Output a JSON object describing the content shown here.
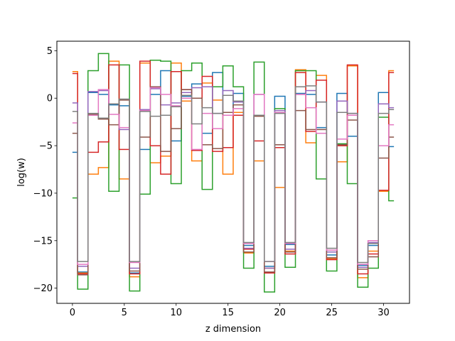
{
  "chart_data": {
    "type": "line",
    "drawstyle": "steps-mid",
    "xlabel": "z dimension",
    "ylabel": "log(w)",
    "xlim": [
      -1.5,
      32.5
    ],
    "ylim": [
      -21.6,
      6.0
    ],
    "xticks": [
      0,
      5,
      10,
      15,
      20,
      25,
      30
    ],
    "yticks": [
      5,
      0,
      -5,
      -10,
      -15,
      -20
    ],
    "ytick_labels": [
      "5",
      "0",
      "−5",
      "−10",
      "−15",
      "−20"
    ],
    "grid": false,
    "legend": "none",
    "x": [
      0,
      1,
      2,
      3,
      4,
      5,
      6,
      7,
      8,
      9,
      10,
      11,
      12,
      13,
      14,
      15,
      16,
      17,
      18,
      19,
      20,
      21,
      22,
      23,
      24,
      25,
      26,
      27,
      28,
      29,
      30,
      31
    ],
    "series": [
      {
        "color": "#1f77b4",
        "values": [
          -5.7,
          -18.3,
          0.6,
          0.4,
          -0.7,
          -0.8,
          -18.4,
          -5.4,
          0.4,
          2.9,
          -4.5,
          0.2,
          1.5,
          -3.7,
          2.7,
          -1.8,
          0.5,
          -15.5,
          -1.8,
          -17.7,
          0.2,
          -15.4,
          0.5,
          0.4,
          -3.1,
          -16.5,
          0.5,
          -4.0,
          -17.6,
          -15.5,
          0.6,
          -5.1
        ]
      },
      {
        "color": "#ff7f0e",
        "values": [
          2.8,
          -18.4,
          -8.0,
          -7.3,
          3.9,
          -8.5,
          -18.8,
          3.7,
          -6.8,
          -6.1,
          3.7,
          -0.3,
          -6.6,
          1.6,
          -0.2,
          -8.0,
          -1.5,
          -16.3,
          -6.6,
          -17.9,
          -9.4,
          -16.1,
          3.0,
          -4.7,
          2.4,
          -16.9,
          -6.7,
          3.4,
          -18.9,
          -16.1,
          -9.8,
          2.9
        ]
      },
      {
        "color": "#2ca02c",
        "values": [
          -10.5,
          -20.1,
          2.9,
          4.7,
          -9.8,
          3.5,
          -20.3,
          -10.1,
          4.0,
          3.9,
          -9.0,
          2.9,
          3.7,
          -9.6,
          1.2,
          3.4,
          1.2,
          -17.9,
          3.8,
          -20.4,
          -1.1,
          -17.8,
          2.9,
          2.9,
          -8.5,
          -18.2,
          -4.8,
          -9.0,
          -19.9,
          -17.9,
          -2.0,
          -10.8
        ]
      },
      {
        "color": "#d62728",
        "values": [
          2.6,
          -18.5,
          -5.7,
          -4.6,
          3.5,
          -5.4,
          -18.5,
          3.9,
          -5.0,
          -8.0,
          2.8,
          0.9,
          -5.5,
          2.3,
          -5.6,
          -5.2,
          -1.8,
          -15.9,
          -4.5,
          -18.4,
          -5.2,
          -16.4,
          2.7,
          -3.5,
          1.9,
          -17.0,
          -5.0,
          3.5,
          -18.5,
          -16.4,
          -9.7,
          2.7
        ]
      },
      {
        "color": "#9467bd",
        "values": [
          -0.5,
          -17.7,
          0.7,
          0.8,
          -0.6,
          -3.3,
          -17.9,
          -1.2,
          1.0,
          -0.7,
          -0.5,
          0.6,
          1.1,
          1.2,
          -1.6,
          0.8,
          -0.4,
          -15.8,
          0.4,
          -17.9,
          -1.3,
          -15.9,
          0.4,
          0.8,
          -0.4,
          -16.2,
          -0.3,
          -1.6,
          -17.8,
          -15.2,
          -0.6,
          -1.0
        ]
      },
      {
        "color": "#8c564b",
        "values": [
          -3.7,
          -18.6,
          -1.7,
          -2.2,
          -2.8,
          -0.2,
          -18.2,
          -4.1,
          1.2,
          -5.6,
          -3.2,
          0.9,
          0.0,
          -4.9,
          -5.3,
          -1.5,
          -0.7,
          -16.2,
          -1.9,
          -18.3,
          -4.9,
          -16.2,
          -1.3,
          -3.3,
          -3.3,
          -16.8,
          -4.9,
          -2.3,
          -18.0,
          -16.7,
          -6.3,
          -4.1
        ]
      },
      {
        "color": "#e377c2",
        "values": [
          -2.6,
          -17.5,
          -1.8,
          0.9,
          -1.7,
          -3.1,
          -17.3,
          -1.3,
          1.1,
          0.4,
          -0.8,
          0.0,
          -5.4,
          -1.6,
          -3.2,
          -1.8,
          -1.1,
          -15.3,
          0.4,
          -17.2,
          -1.5,
          -15.3,
          0.4,
          -1.0,
          -3.7,
          -16.0,
          -4.3,
          -1.8,
          -17.5,
          -15.0,
          -5.0,
          -2.8
        ]
      },
      {
        "color": "#7f7f7f",
        "values": [
          -1.4,
          -17.2,
          -1.6,
          -2.1,
          -0.6,
          -0.1,
          -17.2,
          -1.4,
          -1.9,
          -1.8,
          -0.9,
          0.3,
          -2.7,
          -1.0,
          -1.6,
          0.3,
          -0.3,
          -15.2,
          -1.8,
          -17.2,
          -1.6,
          -15.2,
          1.2,
          1.3,
          -0.4,
          -15.8,
          -1.5,
          -1.6,
          -17.3,
          -15.3,
          -1.6,
          -1.2
        ]
      }
    ]
  }
}
